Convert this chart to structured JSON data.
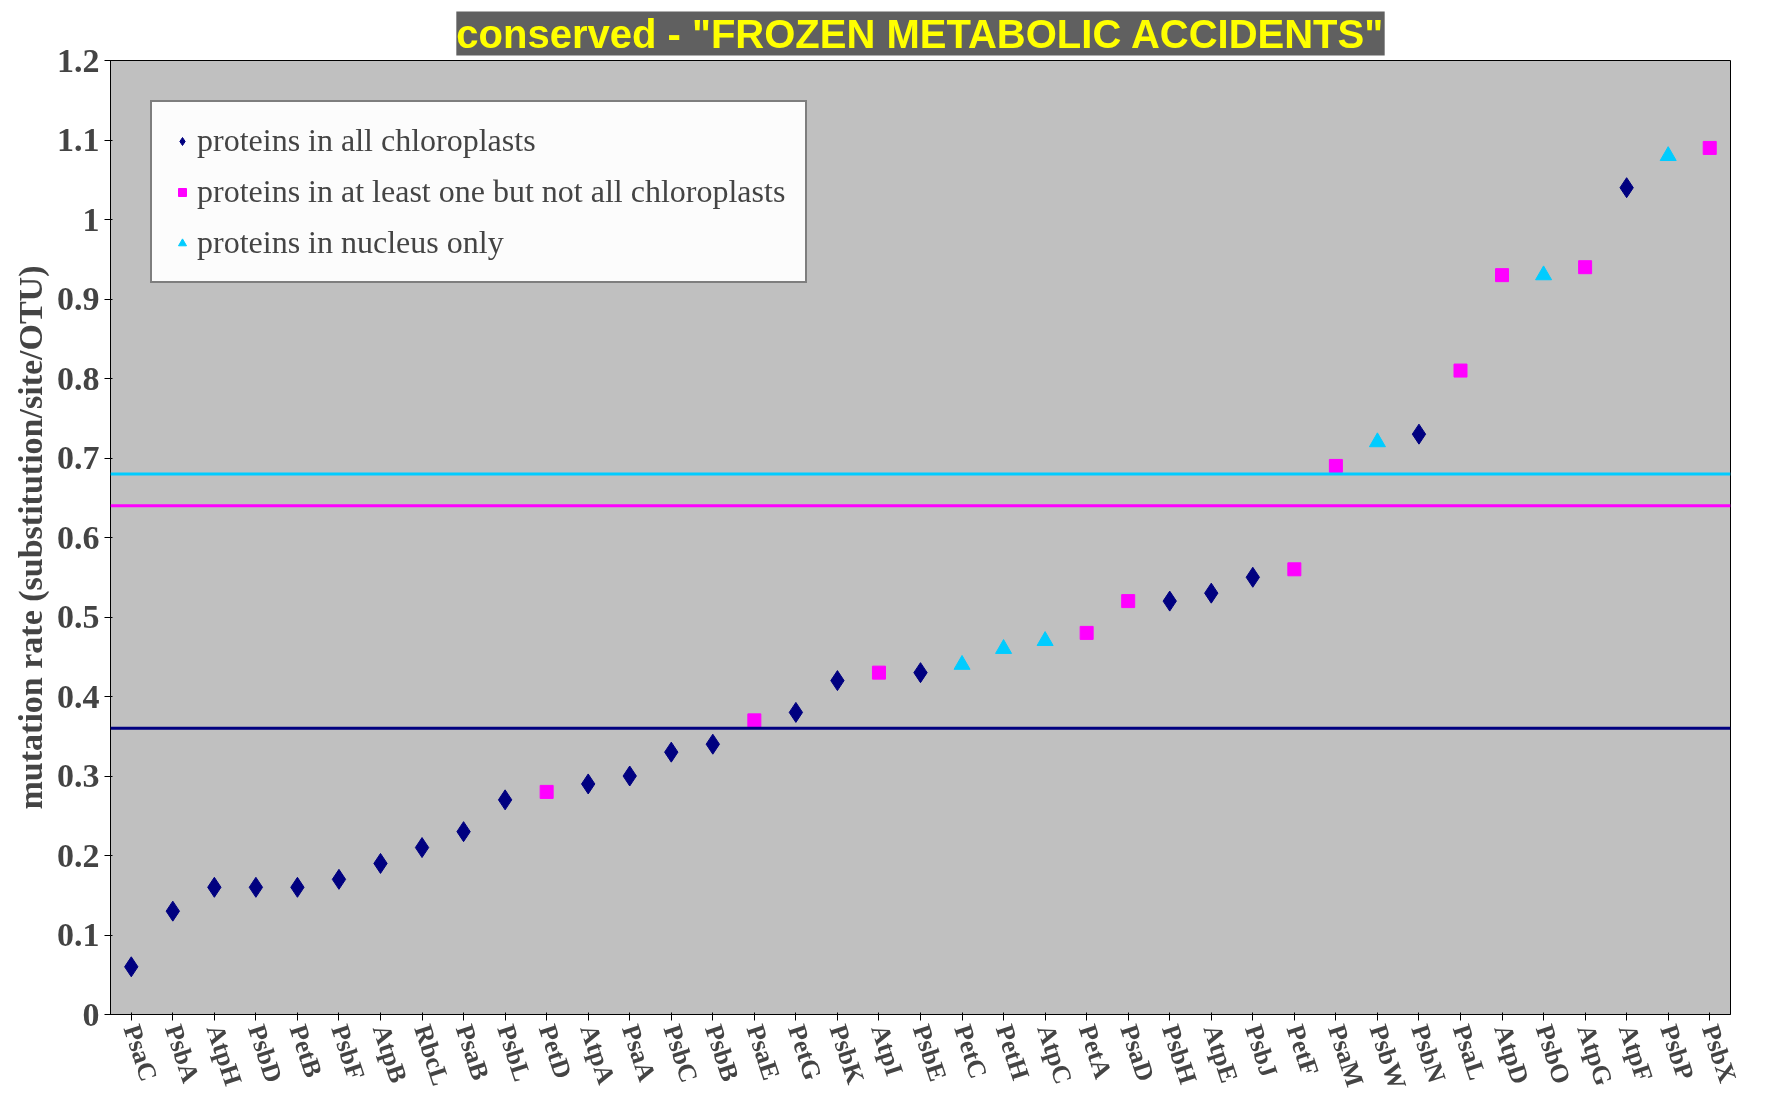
{
  "chart_data": {
    "type": "scatter",
    "title": "conserved - \"FROZEN METABOLIC ACCIDENTS\"",
    "ylabel": "mutation rate (substitution/site/OTU)",
    "categories": [
      "PsaC",
      "PsbA",
      "AtpH",
      "PsbD",
      "PetB",
      "PsbF",
      "AtpB",
      "RbcL",
      "PsaB",
      "PsbL",
      "PetD",
      "AtpA",
      "PsaA",
      "PsbC",
      "PsbB",
      "PsaE",
      "PetG",
      "PsbK",
      "AtpI",
      "PsbE",
      "PetC",
      "PetH",
      "AtpC",
      "PetA",
      "PsaD",
      "PsbH",
      "AtpE",
      "PsbJ",
      "PetF",
      "PsaM",
      "PsbW",
      "PsbN",
      "PsaL",
      "AtpD",
      "PsbO",
      "AtpG",
      "AtpF",
      "PsbP",
      "PsbX"
    ],
    "series": [
      {
        "name": "proteins in all chloroplasts",
        "color": "#000080",
        "marker": "diamond",
        "values": [
          0.06,
          0.13,
          0.16,
          0.16,
          0.16,
          0.17,
          0.19,
          0.21,
          0.23,
          0.27,
          null,
          0.29,
          0.3,
          0.33,
          0.34,
          null,
          0.38,
          0.42,
          null,
          0.43,
          null,
          null,
          null,
          null,
          null,
          0.52,
          0.53,
          0.55,
          null,
          null,
          null,
          0.73,
          null,
          null,
          null,
          null,
          1.04,
          null,
          null
        ]
      },
      {
        "name": "proteins in at least one but not all chloroplasts",
        "color": "#ff00ff",
        "marker": "square",
        "values": [
          null,
          null,
          null,
          null,
          null,
          null,
          null,
          null,
          null,
          null,
          0.28,
          null,
          null,
          null,
          null,
          0.37,
          null,
          null,
          0.43,
          null,
          null,
          null,
          null,
          0.48,
          0.52,
          null,
          null,
          null,
          0.56,
          0.69,
          null,
          null,
          0.81,
          0.93,
          null,
          0.94,
          null,
          null,
          1.09
        ]
      },
      {
        "name": "proteins in nucleus only",
        "color": "#00ccff",
        "marker": "triangle",
        "values": [
          null,
          null,
          null,
          null,
          null,
          null,
          null,
          null,
          null,
          null,
          null,
          null,
          null,
          null,
          null,
          null,
          null,
          null,
          null,
          null,
          0.44,
          0.46,
          0.47,
          null,
          null,
          null,
          null,
          null,
          null,
          null,
          0.72,
          null,
          null,
          null,
          0.93,
          null,
          null,
          1.08,
          null
        ]
      }
    ],
    "ref_lines": [
      {
        "axis": "y",
        "value": 0.68,
        "label": null,
        "color": "#00ccff"
      },
      {
        "axis": "y",
        "value": 0.64,
        "label": null,
        "color": "#ff00ff"
      },
      {
        "axis": "y",
        "value": 0.36,
        "label": null,
        "color": "#000080"
      }
    ],
    "ylim": [
      0,
      1.2
    ],
    "yticks": [
      0,
      0.1,
      0.2,
      0.3,
      0.4,
      0.5,
      0.6,
      0.7,
      0.8,
      0.9,
      1,
      1.1,
      1.2
    ],
    "grid": false,
    "legend": "top left"
  }
}
